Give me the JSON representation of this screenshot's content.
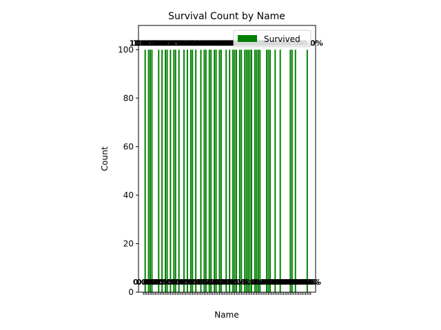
{
  "chart_data": {
    "type": "bar",
    "title": "Survival Count by Name",
    "xlabel": "Name",
    "ylabel": "Count",
    "ylim": [
      0,
      110
    ],
    "yticks": [
      0,
      20,
      40,
      60,
      80,
      100
    ],
    "bar_color": "#008000",
    "legend_position": "upper right",
    "series": [
      {
        "name": "Survived",
        "values": [
          0,
          100,
          0,
          100,
          100,
          100,
          0,
          0,
          0,
          100,
          0,
          100,
          0,
          100,
          100,
          0,
          100,
          0,
          100,
          100,
          0,
          100,
          0,
          0,
          100,
          0,
          100,
          0,
          100,
          100,
          0,
          100,
          0,
          0,
          100,
          0,
          100,
          100,
          0,
          100,
          100,
          0,
          100,
          100,
          0,
          100,
          100,
          0,
          0,
          100,
          0,
          100,
          0,
          100,
          100,
          100,
          0,
          100,
          100,
          0,
          100,
          100,
          100,
          100,
          100,
          0,
          100,
          100,
          100,
          100,
          0,
          0,
          0,
          100,
          100,
          100,
          0,
          0,
          100,
          0,
          0,
          100,
          0,
          0,
          0,
          0,
          0,
          100,
          100,
          0,
          100,
          0,
          0,
          0,
          0,
          0,
          0,
          100,
          0,
          0
        ]
      }
    ],
    "data_label_zero": "0.0%",
    "data_label_full": "100.0%"
  }
}
